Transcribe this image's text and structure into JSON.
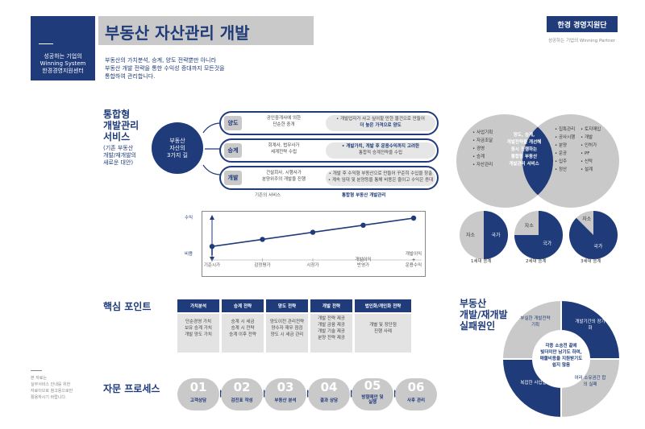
{
  "header": {
    "left_lines": [
      "성공하는 기업의",
      "Winning System",
      "한경경영지원센터"
    ],
    "title": "부동산 자산관리 개발",
    "desc_lines": [
      "부동산의 가치분석, 승계, 양도 전략뿐만 아니라",
      "부동산 개발 전략을 통한 수익성 증대까지 모든것을",
      "통합하여 관리합니다."
    ],
    "brand": "한경 경영지원단",
    "brand_sub": "성공하는 기업의 Winning Partner"
  },
  "integrated": {
    "title_lines": [
      "통합형",
      "개발관리",
      "서비스"
    ],
    "sub_lines": [
      "(기존 부동산",
      "개발/재개발의",
      "새로운 대안)"
    ],
    "circle_lines": [
      "부동산",
      "자산의",
      "3가지 길"
    ],
    "rows": [
      {
        "tag": "양도",
        "left": [
          "공인중개사에 의한",
          "단순한 중개"
        ],
        "right": [
          "• 개발업자가 사고 싶어할 만한 물건으로 만들어",
          "더 높은 가격으로 양도"
        ],
        "right_bold": [
          false,
          true
        ]
      },
      {
        "tag": "승계",
        "left": [
          "회계사, 법무사가",
          "세계전략 수립"
        ],
        "right": [
          "• 개발가치, 개발 후 운용수익까지 고려한",
          "통합적 승계전략을 수립"
        ],
        "right_bold": [
          true,
          false
        ]
      },
      {
        "tag": "개발",
        "left": [
          "건설회사, 시행사가",
          "분양위주의 개발을 진행"
        ],
        "right": [
          "• 개발 후 수익형 부동산으로 만들어 꾸준히 수입을 창출",
          "• 계속 임대 및 분양등을 통해 비용은 줄이고 수익은 증대"
        ],
        "right_bold": [
          false,
          false
        ]
      }
    ],
    "cap_left": "기존의 서비스",
    "cap_right": "통합형 부동산 개발관리"
  },
  "venn": {
    "left": [
      "• 사업기획",
      "• 자금조달",
      "• 경영",
      "• 승계",
      "• 자산관리"
    ],
    "center": [
      "양도, 승계,",
      "개발전략을 개선해",
      "동시 진행하는",
      "통합형 부동산",
      "개발관리 서비스"
    ],
    "right_a": [
      "• 집특관리",
      "• 공사시행",
      "• 분양",
      "• 운공",
      "• 입주",
      "• 정산"
    ],
    "right_b": [
      "• 토지매입",
      "• 개발",
      "• 인허가",
      "• PF",
      "• 신탁",
      "• 설계"
    ]
  },
  "chart_data": {
    "type": "line",
    "categories": [
      "기준시가",
      "감정평가",
      "시장가",
      "개발이익 반영가",
      "개발이익 + 운용수익"
    ],
    "category_lines": [
      [
        "기준시가"
      ],
      [
        "감정평가"
      ],
      [
        "시장가"
      ],
      [
        "개발이익",
        "반영가"
      ],
      [
        "개발이익",
        "+",
        "운용수익"
      ]
    ],
    "values": [
      1,
      2,
      3,
      4,
      5
    ],
    "ylabel_top": "수익",
    "ylabel_bottom": "비용",
    "grid": false
  },
  "pies": [
    {
      "caption": "1세대 승계",
      "own_label": "자소",
      "state_label": "국가",
      "state_share": 0.5
    },
    {
      "caption": "2세대 승계",
      "own_label": "자소",
      "state_label": "국가",
      "state_share": 0.75
    },
    {
      "caption": "3세대 승계",
      "own_label": "자소",
      "state_label": "국가",
      "state_share": 0.875
    }
  ],
  "core": {
    "title": "핵심 포인트",
    "columns": [
      {
        "head": "가치분석",
        "lines": [
          "단순경영 가치",
          "보유 승계 가치",
          "개발 양도 가치"
        ]
      },
      {
        "head": "승계 전략",
        "lines": [
          "승계 시 세금",
          "승계 시 전략",
          "승계 이후 전략"
        ]
      },
      {
        "head": "양도 전략",
        "lines": [
          "양도이전 관리전략",
          "양수자 재무 점검",
          "양도 시 세금 관리"
        ]
      },
      {
        "head": "개발 전략",
        "lines": [
          "개발 전략 제공",
          "개발 금융 제공",
          "개발 기술 제공",
          "분양 전략 제공"
        ]
      },
      {
        "head": "법인화/개인화 전략",
        "lines": [
          "개별 및 장단점",
          "진행 사례"
        ]
      }
    ]
  },
  "failure": {
    "title_lines": [
      "부동산",
      "개발/재개발",
      "실패원인"
    ],
    "segments": [
      "부실한 개발전략 기획",
      "개발기간의 장기화",
      "복잡한 사업절차",
      "여러 소유권간 합의 실패"
    ],
    "center_lines": [
      "각종 소송전 끝에",
      "빛더미만 남기도 하며,",
      "매몰비용을 지원받기도",
      "쉽지 않음"
    ]
  },
  "process": {
    "title": "자문 프로세스",
    "steps": [
      {
        "num": "01",
        "label": "고객상담"
      },
      {
        "num": "02",
        "label": "검진표 작성"
      },
      {
        "num": "03",
        "label": "부동산 분석"
      },
      {
        "num": "04",
        "label": "결과 상담"
      },
      {
        "num": "05",
        "label": "방향제안 및 실행"
      },
      {
        "num": "06",
        "label": "사후 관리"
      }
    ]
  },
  "note_lines": [
    "본 자료는",
    "실무서비스 안내를 위한",
    "자료이므로 참고용으로만",
    "활용하시기 바랍니다."
  ]
}
